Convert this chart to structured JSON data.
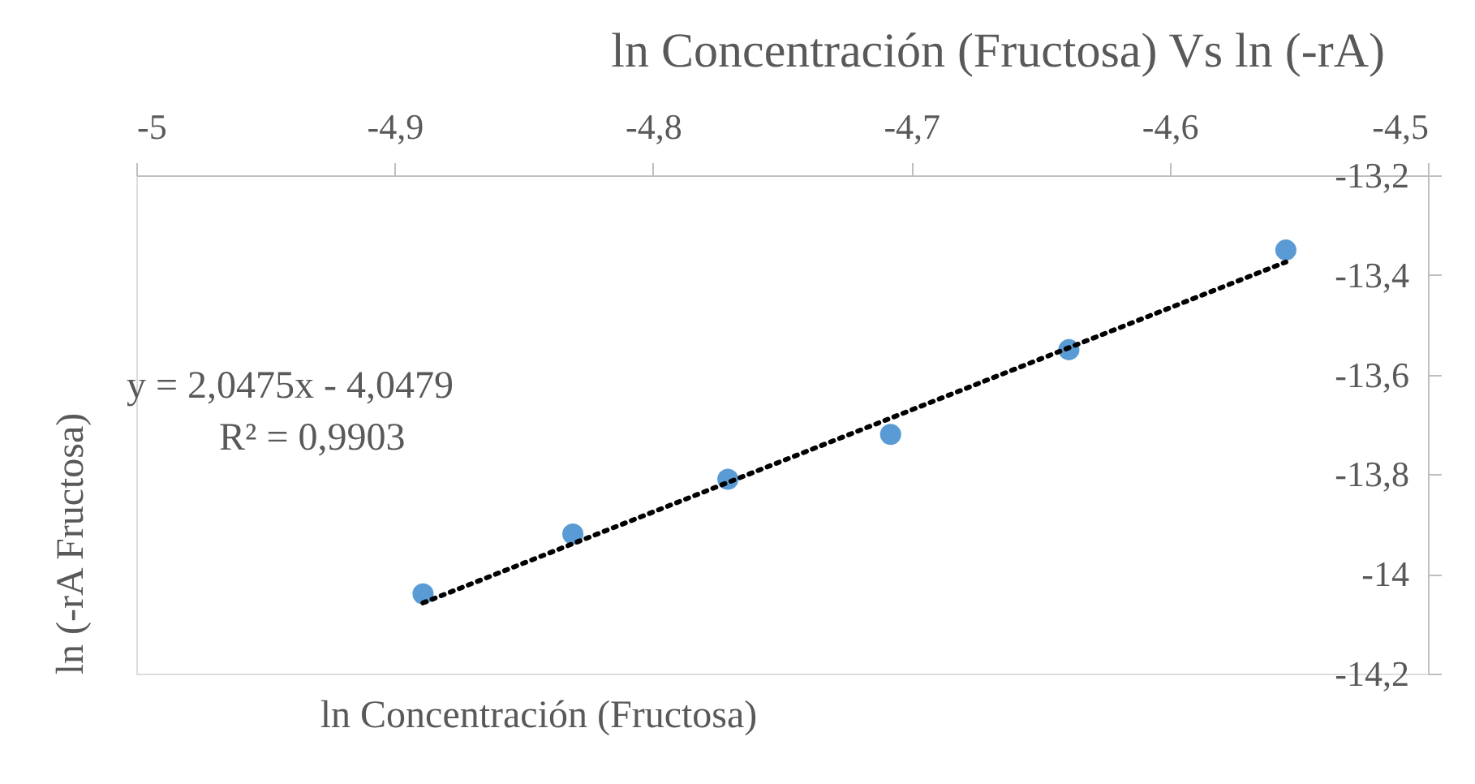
{
  "chart_data": {
    "type": "scatter",
    "title": "ln Concentración (Fructosa) Vs ln (-rA)",
    "xlabel": "ln Concentración (Fructosa)",
    "ylabel": "ln (-rA Fructosa)",
    "annotations": [
      "y = 2,0475x - 4,0479",
      "R² = 0,9903"
    ],
    "xlim": [
      -5,
      -4.5
    ],
    "ylim": [
      -14.2,
      -13.2
    ],
    "xticks": [
      {
        "value": -5,
        "label": "-5"
      },
      {
        "value": -4.9,
        "label": "-4,9"
      },
      {
        "value": -4.8,
        "label": "-4,8"
      },
      {
        "value": -4.7,
        "label": "-4,7"
      },
      {
        "value": -4.6,
        "label": "-4,6"
      },
      {
        "value": -4.5,
        "label": "-4,5"
      }
    ],
    "yticks": [
      {
        "value": -13.2,
        "label": "-13,2"
      },
      {
        "value": -13.4,
        "label": "-13,4"
      },
      {
        "value": -13.6,
        "label": "-13,6"
      },
      {
        "value": -13.8,
        "label": "-13,8"
      },
      {
        "value": -14,
        "label": "-14"
      },
      {
        "value": -14.2,
        "label": "-14,2"
      }
    ],
    "grid": false,
    "series": [
      {
        "marker": "circle",
        "color": "#5b9bd5",
        "x": [
          -4.889,
          -4.831,
          -4.771,
          -4.708,
          -4.639,
          -4.555
        ],
        "values": [
          -14.04,
          -13.92,
          -13.81,
          -13.72,
          -13.55,
          -13.35
        ]
      },
      {
        "type": "line",
        "color": "#000000",
        "line_style": "dotted",
        "marker": "none",
        "x": [
          -4.889,
          -4.555
        ],
        "values": [
          -14.058,
          -13.374
        ]
      }
    ]
  }
}
